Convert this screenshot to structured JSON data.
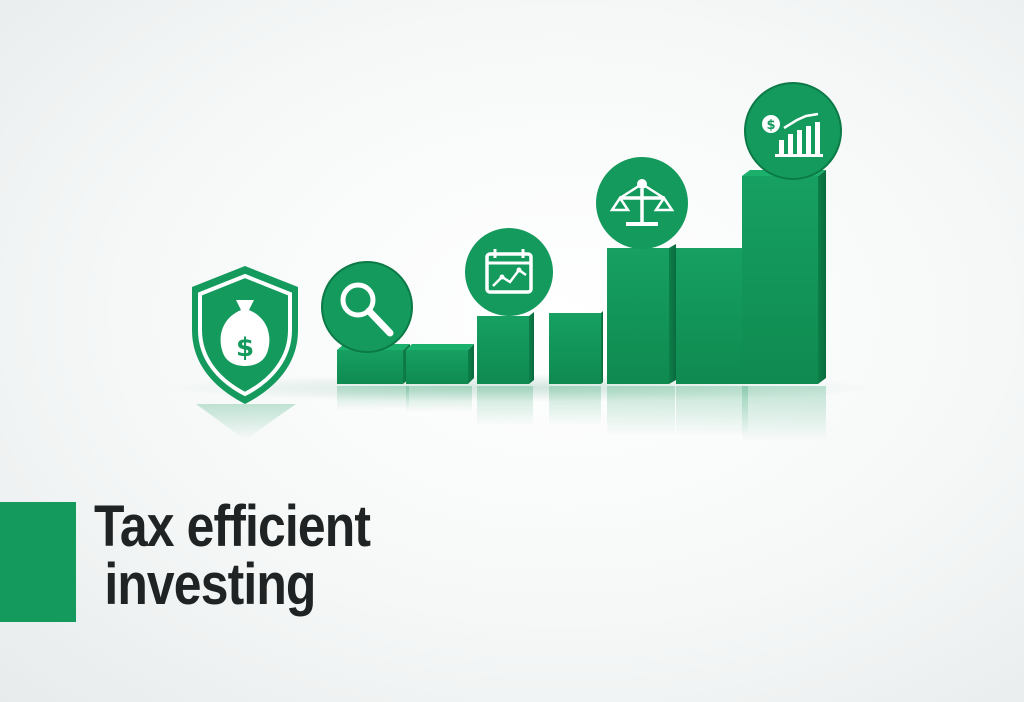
{
  "headline": {
    "line1": "Tax efficient",
    "line2": "investing"
  },
  "colors": {
    "brand_green": "#139a5c",
    "brand_green_dark": "#0c7a47",
    "brand_green_side": "#0f8a50",
    "text_dark": "#1f2324",
    "icon_white": "#ffffff"
  },
  "icons": [
    "shield-money-bag-icon",
    "magnifier-icon",
    "calendar-chart-icon",
    "balance-scale-icon",
    "growth-bars-icon"
  ]
}
